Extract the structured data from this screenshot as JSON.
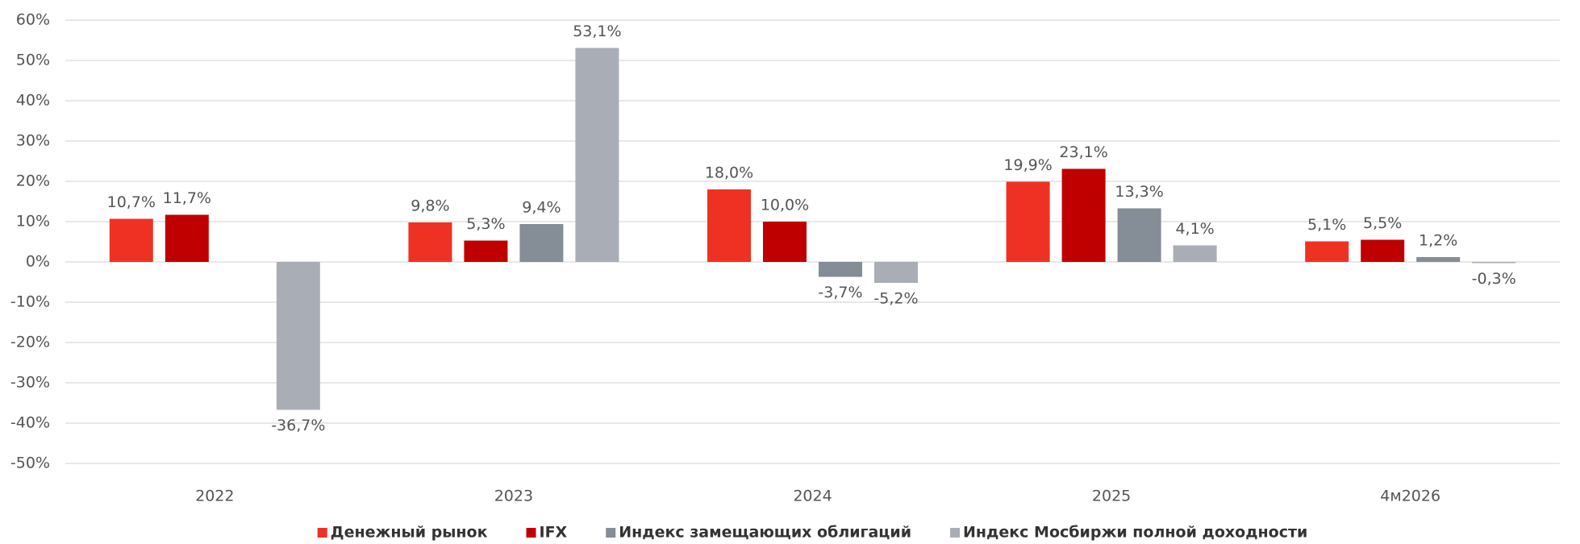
{
  "chart_data": {
    "type": "bar",
    "categories": [
      "2022",
      "2023",
      "2024",
      "2025",
      "4м2026"
    ],
    "series": [
      {
        "name": "Денежный рынок",
        "color": "#ef3124",
        "values": [
          10.7,
          9.8,
          18.0,
          19.9,
          5.1
        ],
        "value_labels": [
          "10,7%",
          "9,8%",
          "18,0%",
          "19,9%",
          "5,1%"
        ]
      },
      {
        "name": "IFX",
        "color": "#c00000",
        "values": [
          11.7,
          5.3,
          10.0,
          23.1,
          5.5
        ],
        "value_labels": [
          "11,7%",
          "5,3%",
          "10,0%",
          "23,1%",
          "5,5%"
        ]
      },
      {
        "name": "Индекс замещающих облигаций",
        "color": "#858d96",
        "values": [
          null,
          9.4,
          -3.7,
          13.3,
          1.2
        ],
        "value_labels": [
          null,
          "9,4%",
          "-3,7%",
          "13,3%",
          "1,2%"
        ]
      },
      {
        "name": "Индекс Мосбиржи полной доходности",
        "color": "#a9aeb6",
        "values": [
          -36.7,
          53.1,
          -5.2,
          4.1,
          -0.3
        ],
        "value_labels": [
          "-36,7%",
          "53,1%",
          "-5,2%",
          "4,1%",
          "-0,3%"
        ]
      }
    ],
    "ylim": [
      -50,
      60
    ],
    "yticks": [
      {
        "value": -50,
        "label": "-50%"
      },
      {
        "value": -40,
        "label": "-40%"
      },
      {
        "value": -30,
        "label": "-30%"
      },
      {
        "value": -20,
        "label": "-20%"
      },
      {
        "value": -10,
        "label": "-10%"
      },
      {
        "value": 0,
        "label": "0%"
      },
      {
        "value": 10,
        "label": "10%"
      },
      {
        "value": 20,
        "label": "20%"
      },
      {
        "value": 30,
        "label": "30%"
      },
      {
        "value": 40,
        "label": "40%"
      },
      {
        "value": 50,
        "label": "50%"
      },
      {
        "value": 60,
        "label": "60%"
      }
    ],
    "grid": true,
    "legend": "bottom"
  }
}
